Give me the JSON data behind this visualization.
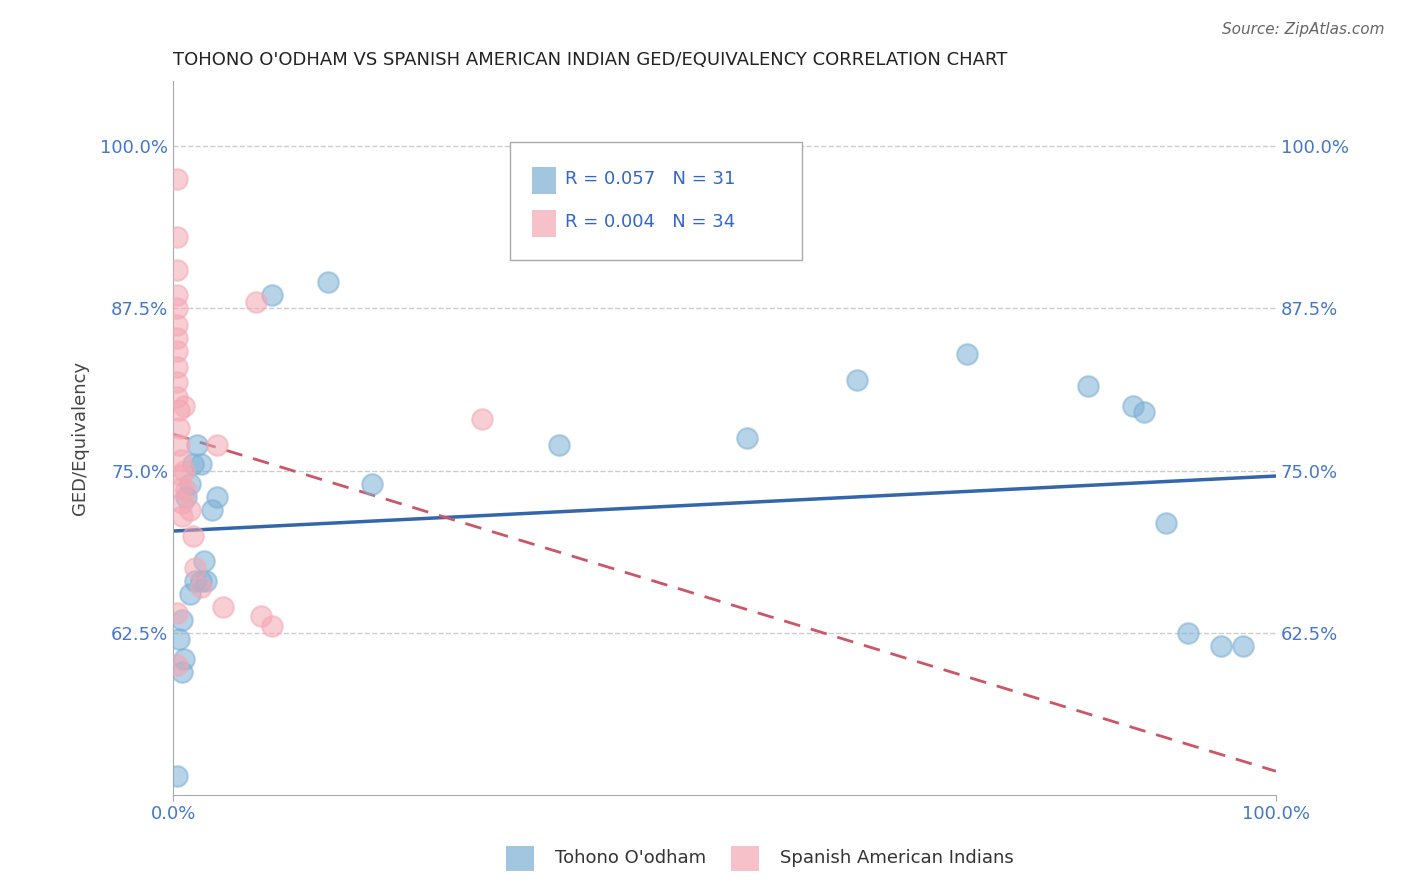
{
  "title": "TOHONO O'ODHAM VS SPANISH AMERICAN INDIAN GED/EQUIVALENCY CORRELATION CHART",
  "source": "Source: ZipAtlas.com",
  "ylabel": "GED/Equivalency",
  "r1": 0.057,
  "n1": 31,
  "r2": 0.004,
  "n2": 34,
  "blue_color": "#7BAFD4",
  "pink_color": "#F4A7B3",
  "trendline1_color": "#3366AA",
  "trendline2_color": "#CC5566",
  "background_color": "#FFFFFF",
  "grid_color": "#CCCCCC",
  "ytick_labels": [
    "62.5%",
    "75.0%",
    "87.5%",
    "100.0%"
  ],
  "ytick_values": [
    0.625,
    0.75,
    0.875,
    1.0
  ],
  "blue_x": [
    0.003,
    0.008,
    0.012,
    0.015,
    0.018,
    0.022,
    0.025,
    0.028,
    0.035,
    0.04,
    0.09,
    0.14,
    0.18,
    0.35,
    0.52,
    0.62,
    0.72,
    0.83,
    0.87,
    0.88,
    0.9,
    0.92,
    0.95,
    0.97,
    0.005,
    0.01,
    0.015,
    0.02,
    0.025,
    0.03,
    0.008
  ],
  "blue_y": [
    0.515,
    0.635,
    0.73,
    0.74,
    0.755,
    0.77,
    0.755,
    0.68,
    0.72,
    0.73,
    0.885,
    0.895,
    0.74,
    0.77,
    0.775,
    0.82,
    0.84,
    0.815,
    0.8,
    0.795,
    0.71,
    0.625,
    0.615,
    0.615,
    0.62,
    0.605,
    0.655,
    0.665,
    0.665,
    0.665,
    0.595
  ],
  "pink_x": [
    0.003,
    0.003,
    0.003,
    0.003,
    0.003,
    0.003,
    0.003,
    0.003,
    0.003,
    0.003,
    0.003,
    0.005,
    0.005,
    0.005,
    0.007,
    0.007,
    0.007,
    0.008,
    0.008,
    0.01,
    0.01,
    0.012,
    0.015,
    0.018,
    0.02,
    0.025,
    0.04,
    0.045,
    0.075,
    0.08,
    0.09,
    0.28,
    0.003,
    0.003
  ],
  "pink_y": [
    0.975,
    0.93,
    0.905,
    0.885,
    0.875,
    0.862,
    0.852,
    0.842,
    0.83,
    0.818,
    0.807,
    0.797,
    0.783,
    0.77,
    0.758,
    0.747,
    0.737,
    0.725,
    0.715,
    0.8,
    0.75,
    0.735,
    0.72,
    0.7,
    0.675,
    0.66,
    0.77,
    0.645,
    0.88,
    0.638,
    0.63,
    0.79,
    0.64,
    0.6
  ],
  "xmin": 0.0,
  "xmax": 1.0,
  "ymin": 0.5,
  "ymax": 1.05,
  "legend_label1": "Tohono O'odham",
  "legend_label2": "Spanish American Indians"
}
